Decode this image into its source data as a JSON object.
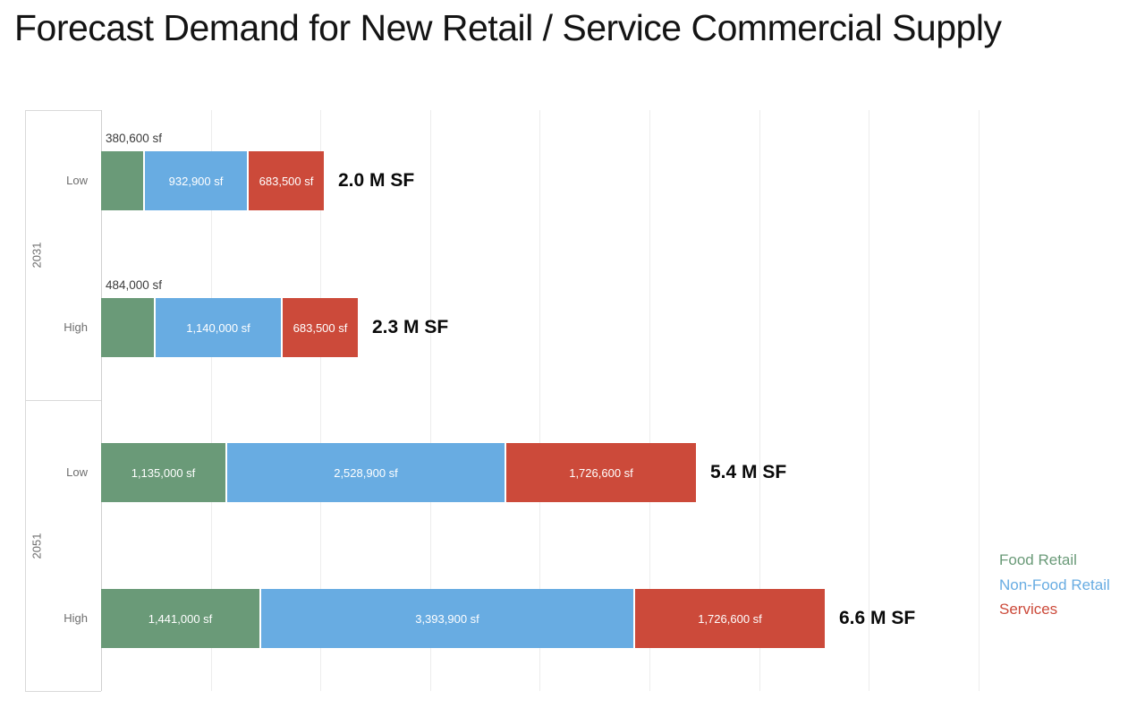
{
  "chart_data": {
    "type": "bar",
    "orientation": "horizontal",
    "stacked": true,
    "title": "Forecast Demand for New Retail / Service Commercial Supply",
    "unit": "sf",
    "xlim": [
      0,
      8000000
    ],
    "gridline_interval": 1000000,
    "grid": true,
    "series": [
      {
        "name": "Food Retail",
        "color": "#6A9A78"
      },
      {
        "name": "Non-Food Retail",
        "color": "#68ACE2"
      },
      {
        "name": "Services",
        "color": "#CC4A3A"
      }
    ],
    "groups": [
      {
        "label": "2031",
        "rows": [
          {
            "label": "Low",
            "values": [
              380600,
              932900,
              683500
            ],
            "segment_labels": [
              "380,600 sf",
              "932,900 sf",
              "683,500 sf"
            ],
            "first_label_above_bar": true,
            "total_value": 1997000,
            "total_label": "2.0 M SF"
          },
          {
            "label": "High",
            "values": [
              484000,
              1140000,
              683500
            ],
            "segment_labels": [
              "484,000 sf",
              "1,140,000 sf",
              "683,500 sf"
            ],
            "first_label_above_bar": true,
            "total_value": 2307500,
            "total_label": "2.3 M SF"
          }
        ]
      },
      {
        "label": "2051",
        "rows": [
          {
            "label": "Low",
            "values": [
              1135000,
              2528900,
              1726600
            ],
            "segment_labels": [
              "1,135,000 sf",
              "2,528,900 sf",
              "1,726,600 sf"
            ],
            "first_label_above_bar": false,
            "total_value": 5390500,
            "total_label": "5.4 M SF"
          },
          {
            "label": "High",
            "values": [
              1441000,
              3393900,
              1726600
            ],
            "segment_labels": [
              "1,441,000 sf",
              "3,393,900 sf",
              "1,726,600 sf"
            ],
            "first_label_above_bar": false,
            "total_value": 6561500,
            "total_label": "6.6 M SF"
          }
        ]
      }
    ],
    "legend": {
      "position": "right",
      "entries": [
        "Food Retail",
        "Non-Food Retail",
        "Services"
      ]
    }
  }
}
